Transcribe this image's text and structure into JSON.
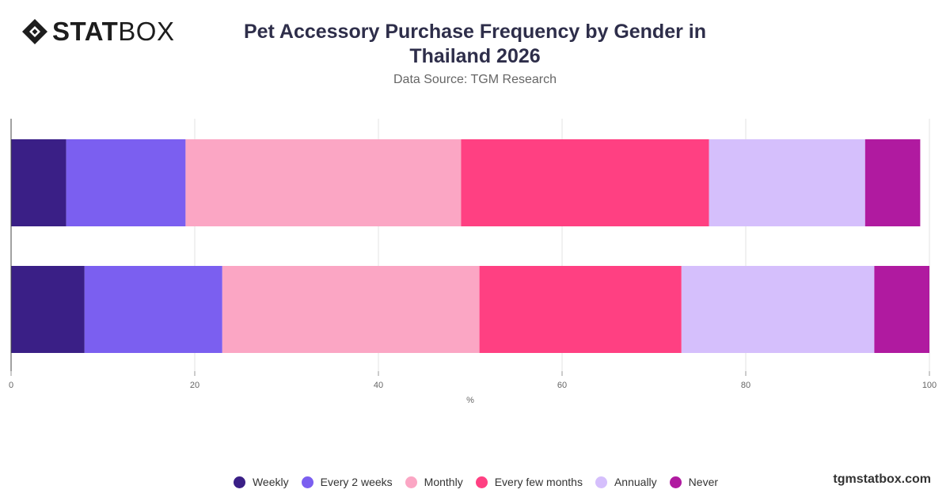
{
  "brand": {
    "logo_strong": "STAT",
    "logo_light": "BOX",
    "site": "tgmstatbox.com"
  },
  "chart_data": {
    "type": "bar",
    "orientation": "horizontal",
    "stacked": true,
    "title": "Pet Accessory Purchase Frequency by Gender in Thailand 2026",
    "subtitle": "Data Source: TGM Research",
    "xlabel": "%",
    "ylabel": "",
    "xlim": [
      0,
      100
    ],
    "x_ticks": [
      0,
      20,
      40,
      60,
      80,
      100
    ],
    "grid": true,
    "legend_position": "bottom",
    "categories": [
      "",
      ""
    ],
    "series": [
      {
        "name": "Weekly",
        "color": "#3a1f86",
        "values": [
          6,
          8
        ]
      },
      {
        "name": "Every 2 weeks",
        "color": "#7b5ff0",
        "values": [
          13,
          15
        ]
      },
      {
        "name": "Monthly",
        "color": "#fba6c4",
        "values": [
          30,
          28
        ]
      },
      {
        "name": "Every few months",
        "color": "#ff4082",
        "values": [
          27,
          22
        ]
      },
      {
        "name": "Annually",
        "color": "#d5bffc",
        "values": [
          17,
          21
        ]
      },
      {
        "name": "Never",
        "color": "#b01aa0",
        "values": [
          6,
          6
        ]
      }
    ]
  }
}
